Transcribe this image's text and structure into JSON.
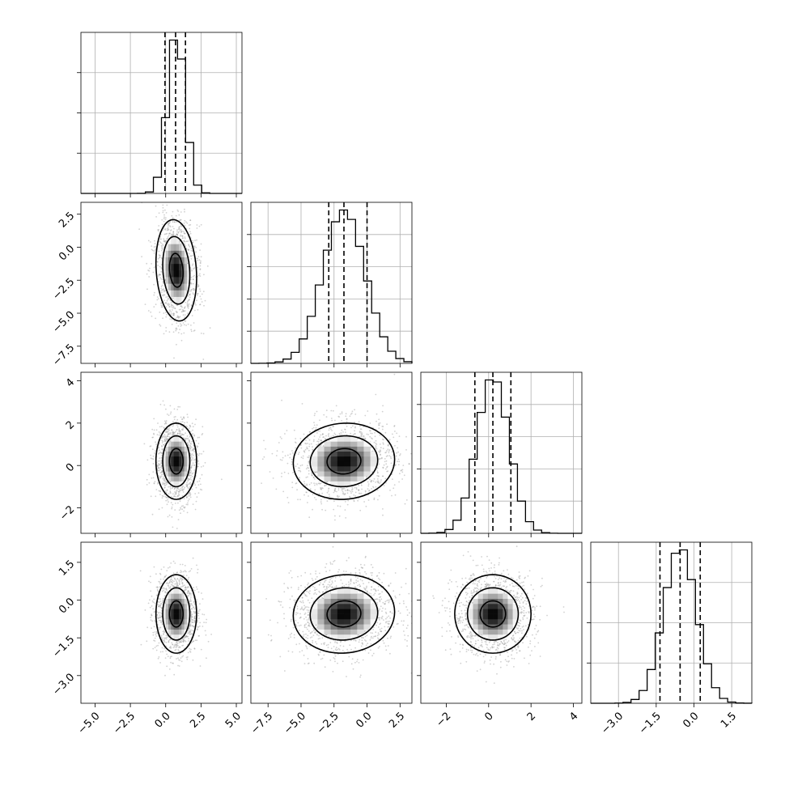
{
  "chart_data": {
    "type": "corner",
    "parameters": [
      {
        "range": [
          -6.0,
          5.4
        ],
        "ticks": [
          -5.0,
          -2.5,
          0.0,
          2.5,
          5.0
        ],
        "tick_labels": [
          "−5.0",
          "−2.5",
          "0.0",
          "2.5",
          "5.0"
        ],
        "mean": 0.75,
        "sd": 0.6,
        "quantiles": [
          -0.05,
          0.7,
          1.4
        ]
      },
      {
        "range": [
          -8.8,
          3.4
        ],
        "ticks": [
          -7.5,
          -5.0,
          -2.5,
          0.0,
          2.5
        ],
        "tick_labels": [
          "−7.5",
          "−5.0",
          "−2.5",
          "0.0",
          "2.5"
        ],
        "mean": -1.75,
        "sd": 1.6,
        "quantiles": [
          -2.9,
          -1.75,
          0.0
        ]
      },
      {
        "range": [
          -3.2,
          4.4
        ],
        "ticks": [
          -2,
          0,
          2,
          4
        ],
        "tick_labels": [
          "−2",
          "0",
          "2",
          "4"
        ],
        "mean": 0.2,
        "sd": 0.75,
        "quantiles": [
          -0.65,
          0.2,
          1.05
        ]
      },
      {
        "range": [
          -4.1,
          2.3
        ],
        "ticks": [
          -3.0,
          -1.5,
          0.0,
          1.5
        ],
        "tick_labels": [
          "−3.0",
          "−1.5",
          "0.0",
          "1.5"
        ],
        "mean": -0.55,
        "sd": 0.65,
        "quantiles": [
          -1.35,
          -0.55,
          0.25
        ]
      }
    ],
    "histograms": [
      {
        "param": 0,
        "bins": 20,
        "hist_ticks": 3
      },
      {
        "param": 1,
        "bins": 20,
        "hist_ticks": 4
      },
      {
        "param": 2,
        "bins": 20,
        "hist_ticks": 4
      },
      {
        "param": 3,
        "bins": 20,
        "hist_ticks": 3
      }
    ],
    "correlations": [
      {
        "x": 0,
        "y": 1,
        "rho": -0.15
      },
      {
        "x": 0,
        "y": 2,
        "rho": 0.0
      },
      {
        "x": 1,
        "y": 2,
        "rho": 0.05
      },
      {
        "x": 0,
        "y": 3,
        "rho": 0.0
      },
      {
        "x": 1,
        "y": 3,
        "rho": 0.05
      },
      {
        "x": 2,
        "y": 3,
        "rho": 0.0
      }
    ],
    "contour_levels": [
      0.5,
      1.0,
      1.5
    ],
    "xlabel": "",
    "ylabel": "",
    "title": "",
    "grid": true
  }
}
